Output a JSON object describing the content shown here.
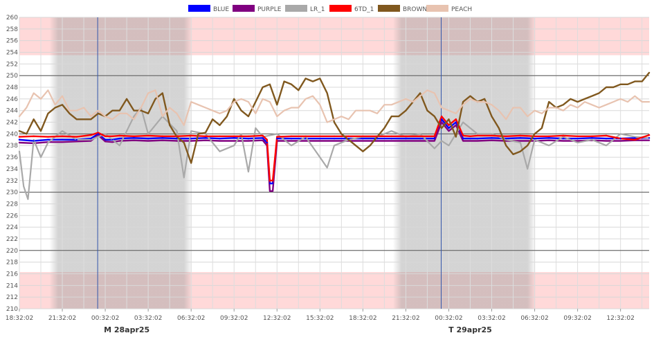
{
  "chart_data": {
    "type": "line",
    "title": "",
    "xlabel": "",
    "ylabel": "",
    "ylim": [
      210,
      260
    ],
    "y_ticks": [
      210,
      212,
      214,
      216,
      218,
      220,
      222,
      224,
      226,
      228,
      230,
      232,
      234,
      236,
      238,
      240,
      242,
      244,
      246,
      248,
      250,
      252,
      254,
      256,
      258,
      260
    ],
    "x_ticks": [
      "18:32:02",
      "21:32:02",
      "00:32:02",
      "03:32:02",
      "06:32:02",
      "09:32:02",
      "12:32:02",
      "15:32:02",
      "18:32:02",
      "21:32:02",
      "00:32:02",
      "03:32:02",
      "06:32:02",
      "09:32:02",
      "12:32:02"
    ],
    "x_start_hours": 0,
    "x_end_hours": 44,
    "date_labels": [
      {
        "text": "M 28apr25",
        "at_hours": 5.47
      },
      {
        "text": "T 29apr25",
        "at_hours": 29.47
      }
    ],
    "limit_bands": [
      {
        "from": 253.5,
        "to": 260,
        "color": "#ffd9d9"
      },
      {
        "from": 210,
        "to": 216.3,
        "color": "#ffd9d9"
      }
    ],
    "reference_lines": [
      250,
      240,
      230,
      220
    ],
    "night_shading": [
      [
        2.1,
        12.1
      ],
      [
        26.1,
        36.1
      ]
    ],
    "series": [
      {
        "name": "BLUE",
        "color": "#0000ff",
        "x": [
          0,
          1,
          2,
          3,
          4,
          5,
          5.5,
          6,
          6.5,
          7,
          8,
          9,
          10,
          11,
          12,
          13,
          14,
          15,
          16,
          17,
          17.3,
          17.5,
          17.7,
          18,
          19,
          20,
          21,
          22,
          23,
          24,
          25,
          26,
          27,
          28,
          29,
          29.5,
          30,
          30.5,
          31,
          31.5,
          32,
          33,
          34,
          35,
          36,
          37,
          38,
          39,
          40,
          41,
          42,
          43,
          44
        ],
        "y": [
          239,
          238.8,
          239,
          239,
          239,
          239.2,
          240,
          239,
          239,
          239.2,
          239.3,
          239.2,
          239.3,
          239.2,
          239.2,
          239.3,
          239.2,
          239.3,
          239.2,
          239.3,
          238.5,
          231.5,
          231.5,
          239.2,
          239.2,
          239.2,
          239.2,
          239.2,
          239.2,
          239.2,
          239.2,
          239.2,
          239.2,
          239.2,
          239.2,
          242.5,
          241,
          242,
          239.2,
          239.2,
          239.2,
          239.3,
          239.2,
          239.3,
          239.2,
          239.3,
          239.2,
          239.2,
          239.3,
          239.2,
          239.2,
          239.3,
          239.3
        ]
      },
      {
        "name": "PURPLE",
        "color": "#800080",
        "x": [
          0,
          1,
          2,
          3,
          4,
          5,
          5.5,
          6,
          6.5,
          7,
          8,
          9,
          10,
          11,
          12,
          13,
          14,
          15,
          16,
          17,
          17.3,
          17.5,
          17.7,
          18,
          19,
          20,
          21,
          22,
          23,
          24,
          25,
          26,
          27,
          28,
          29,
          29.5,
          30,
          30.5,
          31,
          31.5,
          32,
          33,
          34,
          35,
          36,
          37,
          38,
          39,
          40,
          41,
          42,
          43,
          44
        ],
        "y": [
          238.5,
          238.4,
          238.6,
          238.6,
          238.7,
          238.8,
          239.8,
          238.7,
          238.6,
          238.8,
          238.9,
          238.8,
          238.9,
          238.8,
          238.8,
          238.9,
          238.8,
          238.8,
          238.8,
          238.9,
          238,
          230.2,
          230.2,
          238.8,
          238.8,
          238.8,
          238.8,
          238.8,
          238.8,
          238.8,
          238.8,
          238.8,
          238.8,
          238.8,
          238.8,
          242,
          240.5,
          241.5,
          238.8,
          238.8,
          238.8,
          238.9,
          238.8,
          238.8,
          238.8,
          238.9,
          238.8,
          238.8,
          238.9,
          238.8,
          238.8,
          238.9,
          238.9
        ]
      },
      {
        "name": "LR_1",
        "color": "#a9a9a9",
        "x": [
          0,
          0.3,
          0.6,
          1,
          1.5,
          2,
          3,
          4,
          5,
          6,
          7,
          8,
          8.5,
          9,
          10,
          11,
          11.5,
          12,
          13,
          14,
          15,
          15.5,
          16,
          16.5,
          17,
          18,
          19,
          20,
          21,
          21.5,
          22,
          23,
          24,
          25,
          26,
          27,
          28,
          29,
          29.5,
          30,
          31,
          32,
          33,
          34,
          35,
          35.5,
          36,
          37,
          38,
          39,
          40,
          41,
          42,
          43,
          44
        ],
        "y": [
          237,
          231,
          228.8,
          239,
          236,
          238.5,
          240.5,
          239,
          239,
          240,
          238,
          243,
          244.5,
          240,
          243,
          240.5,
          232.5,
          240.5,
          240,
          237,
          238,
          240,
          233.5,
          241,
          239.5,
          240,
          238,
          239.5,
          236,
          234.2,
          238,
          239,
          239.5,
          239.5,
          240.5,
          239.5,
          240,
          237.5,
          238.8,
          238,
          242,
          240,
          240,
          239,
          238.5,
          234,
          239,
          238,
          239.5,
          238.5,
          239,
          238,
          240,
          239.5,
          239.3
        ]
      },
      {
        "name": "6TD_1",
        "color": "#ff0000",
        "x": [
          0,
          1,
          2,
          3,
          4,
          5,
          5.5,
          6,
          6.5,
          7,
          8,
          9,
          10,
          11,
          12,
          13,
          14,
          15,
          16,
          17,
          17.3,
          17.5,
          17.7,
          18,
          19,
          20,
          21,
          22,
          23,
          24,
          25,
          26,
          27,
          28,
          29,
          29.5,
          30,
          30.5,
          31,
          31.5,
          32,
          33,
          34,
          35,
          36,
          37,
          38,
          39,
          40,
          41,
          42,
          43,
          44
        ],
        "y": [
          239.5,
          239.6,
          239.5,
          239.6,
          239.5,
          239.8,
          240.2,
          239.6,
          239.6,
          239.7,
          239.6,
          239.7,
          239.6,
          239.6,
          239.7,
          239.6,
          239.6,
          239.6,
          239.6,
          239.7,
          239,
          232,
          232,
          239.5,
          239.6,
          239.6,
          239.6,
          239.6,
          239.6,
          239.6,
          239.6,
          239.6,
          239.6,
          239.6,
          239.6,
          243,
          241.5,
          242.5,
          239.7,
          239.6,
          239.7,
          239.7,
          239.6,
          239.7,
          239.6,
          239.6,
          239.7,
          239.6,
          239.6,
          239.7,
          239.2,
          239,
          239.8
        ]
      },
      {
        "name": "BROWN",
        "color": "#80581e",
        "x": [
          0,
          0.5,
          1,
          1.5,
          2,
          2.5,
          3,
          3.5,
          4,
          4.5,
          5,
          5.5,
          6,
          6.5,
          7,
          7.5,
          8,
          8.5,
          9,
          9.5,
          10,
          10.5,
          11,
          11.5,
          12,
          12.5,
          13,
          13.5,
          14,
          14.5,
          15,
          15.5,
          16,
          16.5,
          17,
          17.5,
          18,
          18.5,
          19,
          19.5,
          20,
          20.5,
          21,
          21.5,
          22,
          22.5,
          23,
          23.5,
          24,
          24.5,
          25,
          25.5,
          26,
          26.5,
          27,
          27.5,
          28,
          28.5,
          29,
          29.5,
          30,
          30.5,
          31,
          31.5,
          32,
          32.5,
          33,
          33.5,
          34,
          34.5,
          35,
          35.5,
          36,
          36.5,
          37,
          37.5,
          38,
          38.5,
          39,
          39.5,
          40,
          40.5,
          41,
          41.5,
          42,
          42.5,
          43,
          43.5,
          44
        ],
        "y": [
          240.5,
          240,
          242.5,
          240.5,
          243.5,
          244.5,
          245,
          243.5,
          242.5,
          242.5,
          242.5,
          243.5,
          243,
          244,
          244,
          246,
          244,
          244,
          243.5,
          246,
          247,
          241.5,
          239.5,
          238.5,
          235,
          240,
          240.2,
          242.5,
          241.5,
          243,
          246,
          244,
          243,
          245.5,
          248,
          248.5,
          245,
          249,
          248.5,
          247.5,
          249.5,
          249,
          249.5,
          247,
          242,
          240,
          239,
          238,
          237,
          238,
          239.5,
          241,
          243,
          243,
          244,
          245.5,
          247,
          244,
          243,
          241,
          242.5,
          239.5,
          245.5,
          246.5,
          245.5,
          246,
          243,
          241,
          238,
          236.5,
          237,
          238,
          240,
          241,
          245.5,
          244.5,
          245,
          246,
          245.5,
          246,
          246.5,
          247,
          248,
          248,
          248.5,
          248.5,
          249,
          249,
          250.5
        ]
      },
      {
        "name": "PEACH",
        "color": "#e8c3b0",
        "x": [
          0,
          0.5,
          1,
          1.5,
          2,
          2.5,
          3,
          3.5,
          4,
          4.5,
          5,
          5.5,
          6,
          6.5,
          7,
          7.5,
          8,
          8.5,
          9,
          9.5,
          10,
          10.5,
          11,
          11.5,
          12,
          12.5,
          13,
          13.5,
          14,
          14.5,
          15,
          15.5,
          16,
          16.5,
          17,
          17.5,
          18,
          18.5,
          19,
          19.5,
          20,
          20.5,
          21,
          21.5,
          22,
          22.5,
          23,
          23.5,
          24,
          24.5,
          25,
          25.5,
          26,
          26.5,
          27,
          27.5,
          28,
          28.5,
          29,
          29.5,
          30,
          30.5,
          31,
          31.5,
          32,
          32.5,
          33,
          33.5,
          34,
          34.5,
          35,
          35.5,
          36,
          36.5,
          37,
          37.5,
          38,
          38.5,
          39,
          39.5,
          40,
          40.5,
          41,
          41.5,
          42,
          42.5,
          43,
          43.5,
          44
        ],
        "y": [
          243,
          244.5,
          247,
          246,
          247.5,
          245,
          246.5,
          244,
          244,
          244.5,
          243,
          244,
          243,
          242.5,
          243.5,
          243.5,
          242.5,
          244.5,
          247,
          247.5,
          243,
          244.5,
          243.5,
          241.5,
          245.5,
          245,
          244.5,
          244,
          243.5,
          244,
          245.5,
          246,
          245.5,
          243.5,
          246,
          245.5,
          243,
          244,
          244.5,
          244.5,
          246,
          246.5,
          245,
          242,
          242.5,
          243,
          242.5,
          244,
          244,
          244,
          243.5,
          245,
          245,
          245.5,
          246,
          245.5,
          246.5,
          247.5,
          247,
          244.5,
          244,
          243.5,
          245,
          246,
          245.5,
          245.5,
          245,
          244,
          242.5,
          244.5,
          244.5,
          243,
          244,
          243.5,
          244.5,
          244.5,
          244,
          245,
          244.5,
          245.5,
          245,
          244.5,
          245,
          245.5,
          246,
          245.5,
          246.5,
          245.5,
          245.5
        ]
      }
    ]
  }
}
